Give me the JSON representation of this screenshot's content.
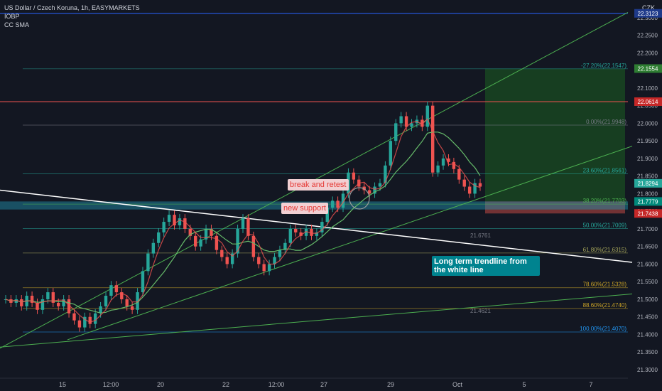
{
  "header": {
    "title": "US Dollar / Czech Koruna, 1h, EASYMARKETS",
    "indicator_1": "IOBP",
    "indicator_2": "CC SMA"
  },
  "currency": "CZK",
  "colors": {
    "background": "#131722",
    "up_candle": "#26a69a",
    "down_candle": "#ef5350",
    "trend_green": "#4caf50",
    "trend_white": "#ffffff",
    "zone_cyan": "#2196b4",
    "target_zone": "#1b5e20",
    "stop_zone": "#8b3a3a"
  },
  "annotations": {
    "break_and_retest": "break and retest",
    "new_support": "new support",
    "trendline_note": "Long term trendline from the white line",
    "level_21_6761": "21.6761",
    "level_21_46": "21.4621"
  },
  "chart_data": {
    "type": "candlestick",
    "title": "US Dollar / Czech Koruna, 1h, EASYMARKETS",
    "ylim": [
      21.3,
      22.33
    ],
    "y_ticks": [
      "22.3000",
      "22.2500",
      "22.2000",
      "22.1500",
      "22.1000",
      "22.0500",
      "22.0000",
      "21.9500",
      "21.9000",
      "21.8500",
      "21.8000",
      "21.7500",
      "21.7000",
      "21.6500",
      "21.6000",
      "21.5500",
      "21.5000",
      "21.4500",
      "21.4000",
      "21.3500",
      "21.3000"
    ],
    "x_ticks": [
      "15",
      "12:00",
      "20",
      "22",
      "12:00",
      "27",
      "29",
      "Oct",
      "5",
      "7"
    ],
    "price_badges": [
      {
        "label": "22.3123",
        "value": 22.3123,
        "color": "#1e3a8a"
      },
      {
        "label": "22.1554",
        "value": 22.1554,
        "color": "#2e7d32"
      },
      {
        "label": "22.0614",
        "value": 22.0614,
        "color": "#c62828"
      },
      {
        "label": "21.8294",
        "value": 21.8294,
        "color": "#26a69a"
      },
      {
        "label": "21.7779",
        "value": 21.7779,
        "color": "#00897b"
      },
      {
        "label": "21.7438",
        "value": 21.7438,
        "color": "#c62828"
      }
    ],
    "fib_levels": [
      {
        "label": "-27.20%(22.1547)",
        "value": 22.1547,
        "color": "#26a69a"
      },
      {
        "label": "0.00%(21.9948)",
        "value": 21.9948,
        "color": "#787b86"
      },
      {
        "label": "23.60%(21.8561)",
        "value": 21.8561,
        "color": "#26a69a"
      },
      {
        "label": "38.20%(21.7703)",
        "value": 21.7703,
        "color": "#4caf50"
      },
      {
        "label": "50.00%(21.7009)",
        "value": 21.7009,
        "color": "#26a69a"
      },
      {
        "label": "61.80%(21.6315)",
        "value": 21.6315,
        "color": "#a5a55a"
      },
      {
        "label": "78.60%(21.5328)",
        "value": 21.5328,
        "color": "#c9a227"
      },
      {
        "label": "88.60%(21.4740)",
        "value": 21.474,
        "color": "#c9a227"
      },
      {
        "label": "100.00%(21.4070)",
        "value": 21.407,
        "color": "#2196f3"
      }
    ],
    "red_level": 22.0614,
    "blue_level": 22.3123,
    "series": [
      {
        "name": "price",
        "close": [
          21.5,
          21.49,
          21.5,
          21.48,
          21.51,
          21.49,
          21.47,
          21.5,
          21.52,
          21.49,
          21.48,
          21.5,
          21.46,
          21.44,
          21.42,
          21.45,
          21.43,
          21.46,
          21.48,
          21.51,
          21.54,
          21.52,
          21.5,
          21.48,
          21.47,
          21.52,
          21.58,
          21.63,
          21.66,
          21.69,
          21.72,
          21.74,
          21.71,
          21.73,
          21.7,
          21.68,
          21.65,
          21.67,
          21.7,
          21.68,
          21.64,
          21.62,
          21.6,
          21.63,
          21.7,
          21.73,
          21.68,
          21.62,
          21.6,
          21.58,
          21.6,
          21.62,
          21.64,
          21.66,
          21.7,
          21.69,
          21.68,
          21.7,
          21.68,
          21.69,
          21.72,
          21.76,
          21.78,
          21.76,
          21.8,
          21.86,
          21.84,
          21.82,
          21.81,
          21.8,
          21.82,
          21.83,
          21.88,
          21.95,
          22.0,
          22.02,
          21.99,
          22.0,
          22.01,
          21.99,
          22.05,
          21.86,
          21.88,
          21.9,
          21.89,
          21.87,
          21.84,
          21.82,
          21.8,
          21.83,
          21.82
        ]
      }
    ]
  }
}
